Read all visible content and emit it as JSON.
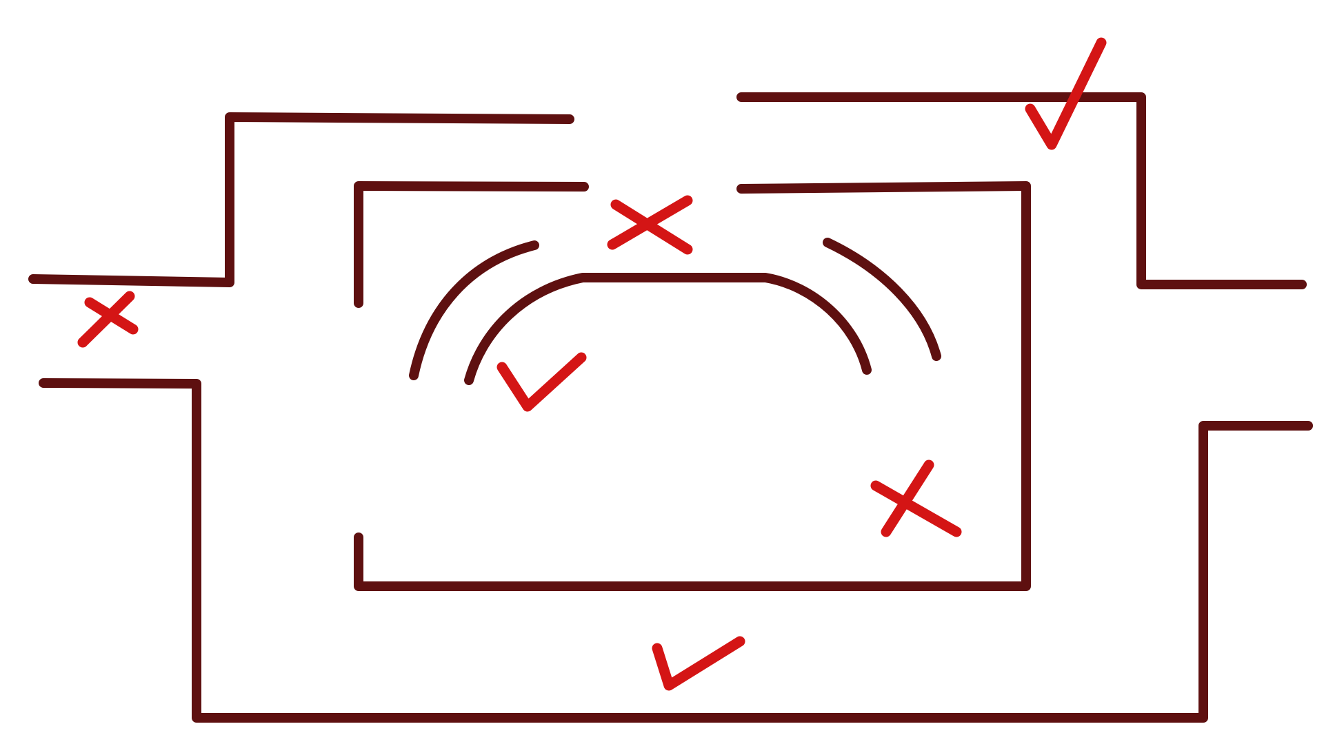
{
  "colors": {
    "background": "#ffffff",
    "line": "#5e1010",
    "mark": "#d41515"
  },
  "marks": [
    {
      "id": "mark-upper-right-corridor",
      "type": "check"
    },
    {
      "id": "mark-top-gap",
      "type": "cross"
    },
    {
      "id": "mark-left-opening",
      "type": "cross"
    },
    {
      "id": "mark-inner-dome",
      "type": "check"
    },
    {
      "id": "mark-inner-right",
      "type": "cross"
    },
    {
      "id": "mark-bottom-corridor",
      "type": "check"
    }
  ]
}
